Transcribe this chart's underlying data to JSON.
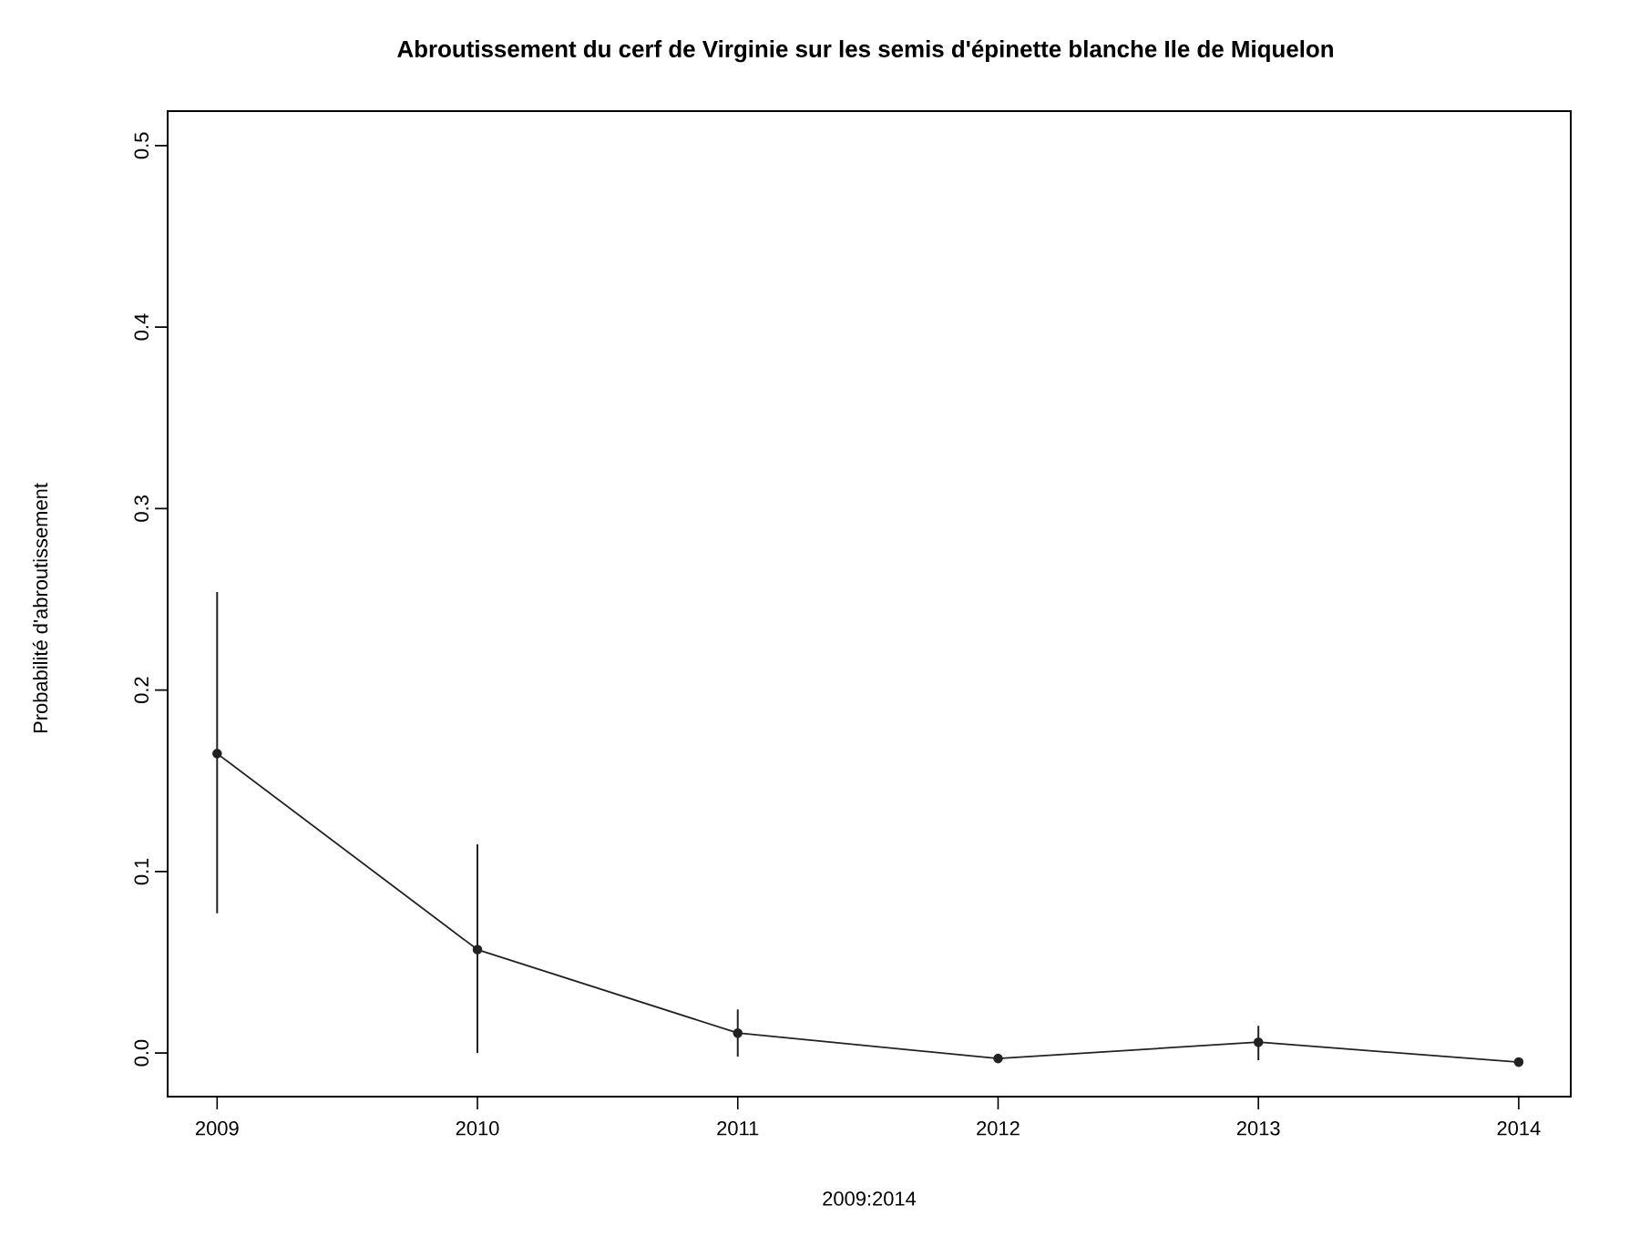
{
  "chart_data": {
    "type": "line",
    "title": "Abroutissement du cerf de Virginie sur les semis d'épinette blanche Ile de Miquelon",
    "xlabel": "2009:2014",
    "ylabel": "Probabilité d'abroutissement",
    "x": [
      2009,
      2010,
      2011,
      2012,
      2013,
      2014
    ],
    "series": [
      {
        "color": "#222222",
        "values": [
          0.165,
          0.057,
          0.011,
          -0.003,
          0.006,
          -0.005
        ],
        "errors": [
          [
            0.077,
            0.254
          ],
          [
            0.0,
            0.115
          ],
          [
            -0.002,
            0.024
          ],
          null,
          [
            -0.004,
            0.015
          ],
          null
        ]
      }
    ],
    "xlim": [
      2008.81,
      2014.2
    ],
    "ylim": [
      -0.024,
      0.519
    ],
    "xticks": [
      2009,
      2010,
      2011,
      2012,
      2013,
      2014
    ],
    "yticks": [
      {
        "value": 0,
        "label": "0.0"
      },
      0.1,
      0.2,
      0.3,
      0.4,
      0.5
    ],
    "marker": "circle",
    "line_style": "solid"
  }
}
